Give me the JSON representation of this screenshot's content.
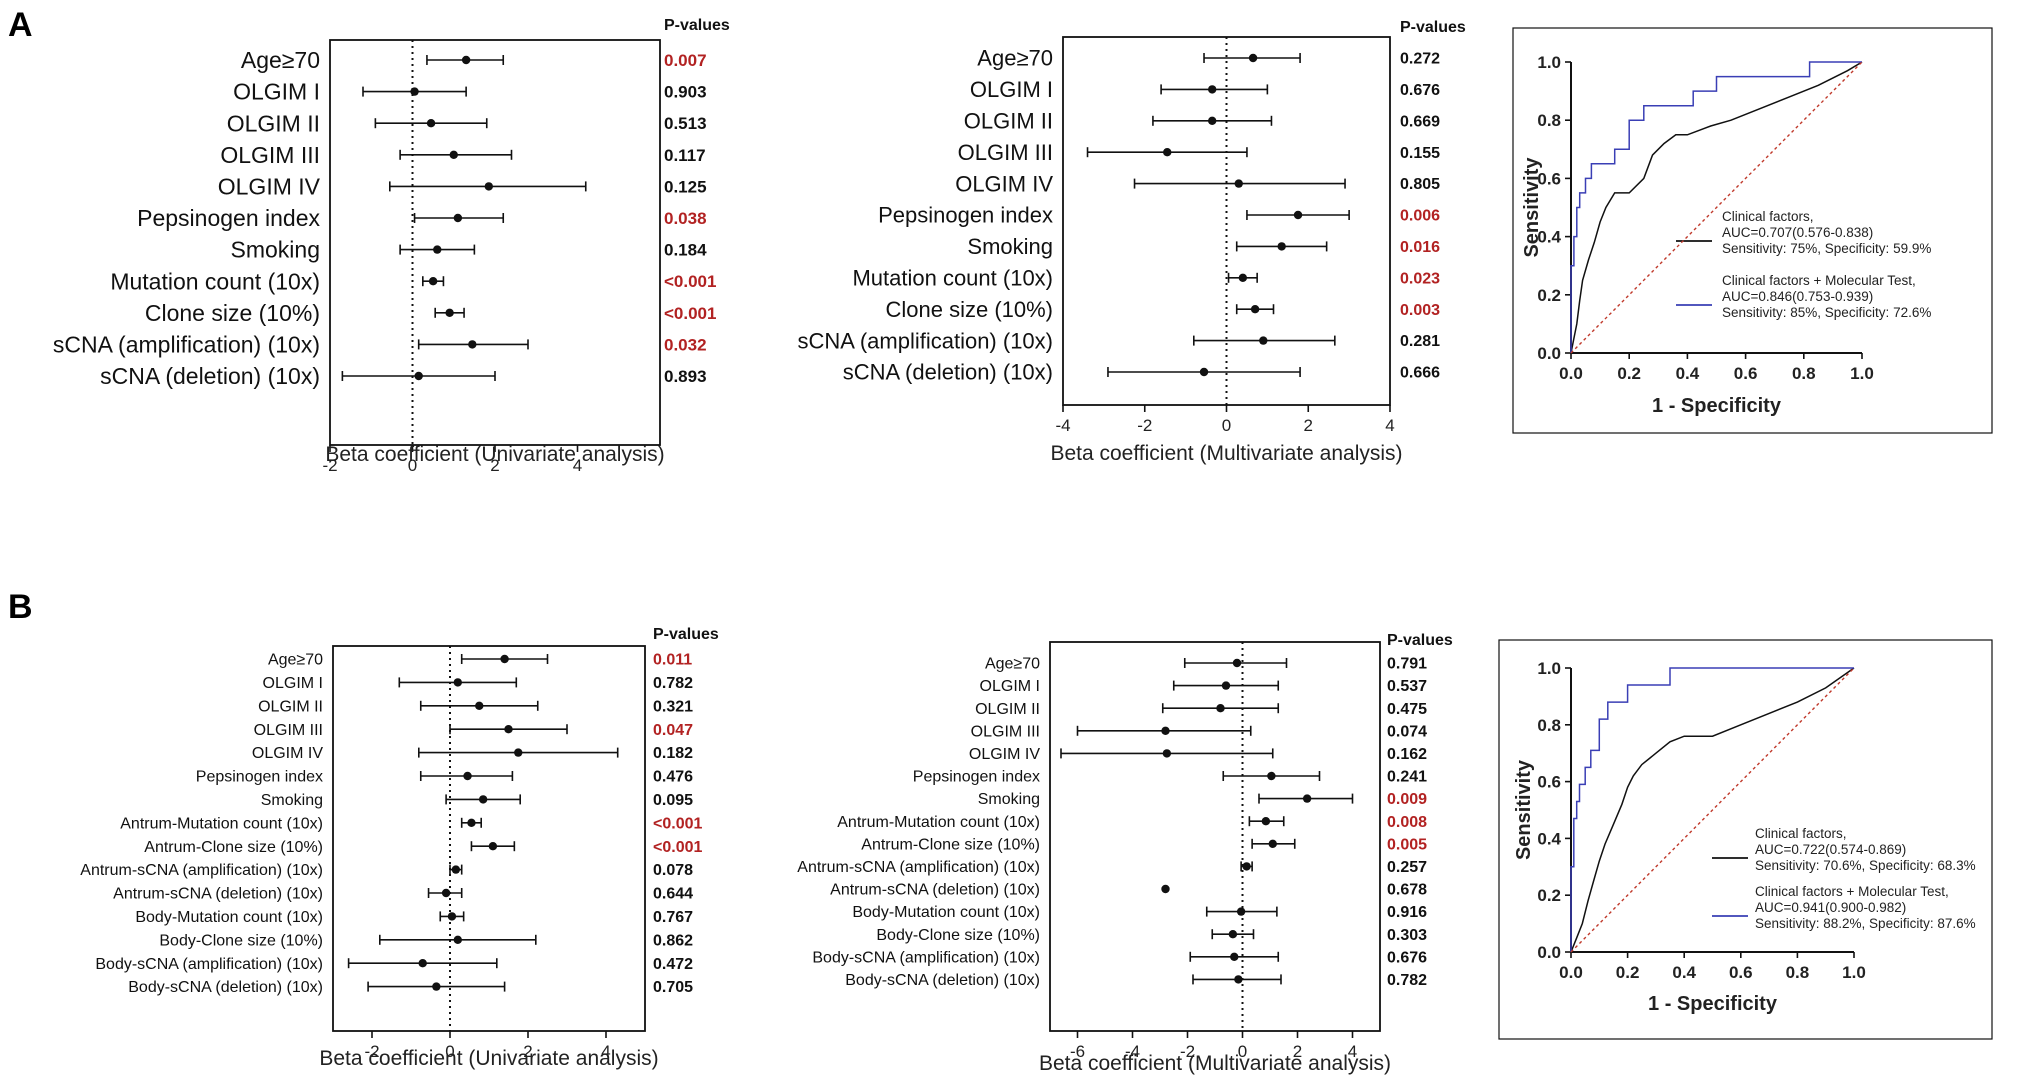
{
  "figure": {
    "panel_a_label": "A",
    "panel_b_label": "B"
  },
  "colors": {
    "significant": "#b22222",
    "normal": "#111111",
    "clinical": "#111111",
    "molecular": "#3a3fb5",
    "diagonal": "#c0392b"
  },
  "chart_data": [
    {
      "id": "A1",
      "type": "forest",
      "pvalue_header": "P-values",
      "xlabel": "Beta coefficient (Univariate analysis)",
      "xlim": [
        -2,
        6
      ],
      "xticks": [
        -2,
        0,
        2,
        4
      ],
      "rows": [
        {
          "label": "Age≥70",
          "est": 1.3,
          "lo": 0.35,
          "hi": 2.2,
          "p": "0.007",
          "sig": true
        },
        {
          "label": "OLGIM I",
          "est": 0.05,
          "lo": -1.2,
          "hi": 1.3,
          "p": "0.903",
          "sig": false
        },
        {
          "label": "OLGIM II",
          "est": 0.45,
          "lo": -0.9,
          "hi": 1.8,
          "p": "0.513",
          "sig": false
        },
        {
          "label": "OLGIM III",
          "est": 1.0,
          "lo": -0.3,
          "hi": 2.4,
          "p": "0.117",
          "sig": false
        },
        {
          "label": "OLGIM IV",
          "est": 1.85,
          "lo": -0.55,
          "hi": 4.2,
          "p": "0.125",
          "sig": false
        },
        {
          "label": "Pepsinogen index",
          "est": 1.1,
          "lo": 0.05,
          "hi": 2.2,
          "p": "0.038",
          "sig": true
        },
        {
          "label": "Smoking",
          "est": 0.6,
          "lo": -0.3,
          "hi": 1.5,
          "p": "0.184",
          "sig": false
        },
        {
          "label": "Mutation count (10x)",
          "est": 0.5,
          "lo": 0.25,
          "hi": 0.75,
          "p": "<0.001",
          "sig": true
        },
        {
          "label": "Clone size (10%)",
          "est": 0.9,
          "lo": 0.55,
          "hi": 1.25,
          "p": "<0.001",
          "sig": true
        },
        {
          "label": "sCNA (amplification) (10x)",
          "est": 1.45,
          "lo": 0.15,
          "hi": 2.8,
          "p": "0.032",
          "sig": true
        },
        {
          "label": "sCNA (deletion) (10x)",
          "est": 0.15,
          "lo": -1.7,
          "hi": 2.0,
          "p": "0.893",
          "sig": false
        }
      ]
    },
    {
      "id": "A2",
      "type": "forest",
      "pvalue_header": "P-values",
      "xlabel": "Beta coefficient (Multivariate analysis)",
      "xlim": [
        -4,
        4
      ],
      "xticks": [
        -4,
        -2,
        0,
        2,
        4
      ],
      "rows": [
        {
          "label": "Age≥70",
          "est": 0.65,
          "lo": -0.55,
          "hi": 1.8,
          "p": "0.272",
          "sig": false
        },
        {
          "label": "OLGIM I",
          "est": -0.35,
          "lo": -1.6,
          "hi": 1.0,
          "p": "0.676",
          "sig": false
        },
        {
          "label": "OLGIM II",
          "est": -0.35,
          "lo": -1.8,
          "hi": 1.1,
          "p": "0.669",
          "sig": false
        },
        {
          "label": "OLGIM III",
          "est": -1.45,
          "lo": -3.4,
          "hi": 0.5,
          "p": "0.155",
          "sig": false
        },
        {
          "label": "OLGIM IV",
          "est": 0.3,
          "lo": -2.25,
          "hi": 2.9,
          "p": "0.805",
          "sig": false
        },
        {
          "label": "Pepsinogen index",
          "est": 1.75,
          "lo": 0.5,
          "hi": 3.0,
          "p": "0.006",
          "sig": true
        },
        {
          "label": "Smoking",
          "est": 1.35,
          "lo": 0.25,
          "hi": 2.45,
          "p": "0.016",
          "sig": true
        },
        {
          "label": "Mutation count (10x)",
          "est": 0.4,
          "lo": 0.05,
          "hi": 0.75,
          "p": "0.023",
          "sig": true
        },
        {
          "label": "Clone size (10%)",
          "est": 0.7,
          "lo": 0.25,
          "hi": 1.15,
          "p": "0.003",
          "sig": true
        },
        {
          "label": "sCNA (amplification) (10x)",
          "est": 0.9,
          "lo": -0.8,
          "hi": 2.65,
          "p": "0.281",
          "sig": false
        },
        {
          "label": "sCNA (deletion) (10x)",
          "est": -0.55,
          "lo": -2.9,
          "hi": 1.8,
          "p": "0.666",
          "sig": false
        }
      ]
    },
    {
      "id": "A3",
      "type": "line",
      "title": "",
      "xlabel": "1 - Specificity",
      "ylabel": "Sensitivity",
      "xlim": [
        0,
        1
      ],
      "ylim": [
        0,
        1
      ],
      "xticks": [
        "0.0",
        "0.2",
        "0.4",
        "0.6",
        "0.8",
        "1.0"
      ],
      "yticks": [
        "0.0",
        "0.2",
        "0.4",
        "0.6",
        "0.8",
        "1.0"
      ],
      "series": [
        {
          "name": "Clinical factors",
          "legend": [
            "Clinical factors,",
            "AUC=0.707(0.576-0.838)",
            "Sensitivity: 75%, Specificity: 59.9%"
          ],
          "color_key": "clinical",
          "x": [
            0,
            0.01,
            0.02,
            0.03,
            0.04,
            0.06,
            0.08,
            0.1,
            0.12,
            0.15,
            0.18,
            0.2,
            0.25,
            0.28,
            0.32,
            0.36,
            0.4,
            0.48,
            0.55,
            0.65,
            0.75,
            0.85,
            0.95,
            1.0
          ],
          "y": [
            0,
            0.05,
            0.1,
            0.18,
            0.25,
            0.32,
            0.38,
            0.45,
            0.5,
            0.55,
            0.55,
            0.55,
            0.6,
            0.68,
            0.72,
            0.75,
            0.75,
            0.78,
            0.8,
            0.84,
            0.88,
            0.92,
            0.97,
            1.0
          ]
        },
        {
          "name": "Clinical factors + Molecular Test",
          "legend": [
            "Clinical factors + Molecular Test,",
            "AUC=0.846(0.753-0.939)",
            "Sensitivity: 85%, Specificity: 72.6%"
          ],
          "color_key": "molecular",
          "x": [
            0,
            0,
            0.01,
            0.01,
            0.02,
            0.02,
            0.03,
            0.03,
            0.05,
            0.05,
            0.07,
            0.07,
            0.09,
            0.09,
            0.15,
            0.15,
            0.2,
            0.2,
            0.25,
            0.25,
            0.35,
            0.35,
            0.42,
            0.42,
            0.5,
            0.5,
            0.6,
            0.6,
            0.82,
            0.82,
            1.0
          ],
          "y": [
            0,
            0.3,
            0.3,
            0.4,
            0.4,
            0.5,
            0.5,
            0.55,
            0.55,
            0.6,
            0.6,
            0.65,
            0.65,
            0.65,
            0.65,
            0.7,
            0.7,
            0.8,
            0.8,
            0.85,
            0.85,
            0.85,
            0.85,
            0.9,
            0.9,
            0.95,
            0.95,
            0.95,
            0.95,
            1.0,
            1.0
          ]
        },
        {
          "name": "Reference",
          "color_key": "diagonal",
          "dashed": true,
          "x": [
            0,
            1
          ],
          "y": [
            0,
            1
          ]
        }
      ]
    },
    {
      "id": "B1",
      "type": "forest",
      "pvalue_header": "P-values",
      "xlabel": "Beta coefficient (Univariate analysis)",
      "xlim": [
        -3,
        5
      ],
      "xticks": [
        -2,
        0,
        2,
        4
      ],
      "rows": [
        {
          "label": "Age≥70",
          "est": 1.4,
          "lo": 0.3,
          "hi": 2.5,
          "p": "0.011",
          "sig": true
        },
        {
          "label": "OLGIM I",
          "est": 0.2,
          "lo": -1.3,
          "hi": 1.7,
          "p": "0.782",
          "sig": false
        },
        {
          "label": "OLGIM II",
          "est": 0.75,
          "lo": -0.75,
          "hi": 2.25,
          "p": "0.321",
          "sig": false
        },
        {
          "label": "OLGIM III",
          "est": 1.5,
          "lo": 0.0,
          "hi": 3.0,
          "p": "0.047",
          "sig": true
        },
        {
          "label": "OLGIM IV",
          "est": 1.75,
          "lo": -0.8,
          "hi": 4.3,
          "p": "0.182",
          "sig": false
        },
        {
          "label": "Pepsinogen index",
          "est": 0.45,
          "lo": -0.75,
          "hi": 1.6,
          "p": "0.476",
          "sig": false
        },
        {
          "label": "Smoking",
          "est": 0.85,
          "lo": -0.1,
          "hi": 1.8,
          "p": "0.095",
          "sig": false
        },
        {
          "label": "Antrum-Mutation count (10x)",
          "est": 0.55,
          "lo": 0.3,
          "hi": 0.8,
          "p": "<0.001",
          "sig": true
        },
        {
          "label": "Antrum-Clone size (10%)",
          "est": 1.1,
          "lo": 0.55,
          "hi": 1.65,
          "p": "<0.001",
          "sig": true
        },
        {
          "label": "Antrum-sCNA (amplification) (10x)",
          "est": 0.15,
          "lo": 0.0,
          "hi": 0.3,
          "p": "0.078",
          "sig": false
        },
        {
          "label": "Antrum-sCNA (deletion) (10x)",
          "est": -0.1,
          "lo": -0.55,
          "hi": 0.3,
          "p": "0.644",
          "sig": false
        },
        {
          "label": "Body-Mutation count (10x)",
          "est": 0.05,
          "lo": -0.25,
          "hi": 0.35,
          "p": "0.767",
          "sig": false
        },
        {
          "label": "Body-Clone size (10%)",
          "est": 0.2,
          "lo": -1.8,
          "hi": 2.2,
          "p": "0.862",
          "sig": false
        },
        {
          "label": "Body-sCNA (amplification) (10x)",
          "est": -0.7,
          "lo": -2.6,
          "hi": 1.2,
          "p": "0.472",
          "sig": false
        },
        {
          "label": "Body-sCNA (deletion) (10x)",
          "est": -0.35,
          "lo": -2.1,
          "hi": 1.4,
          "p": "0.705",
          "sig": false
        }
      ]
    },
    {
      "id": "B2",
      "type": "forest",
      "pvalue_header": "P-values",
      "xlabel": "Beta coefficient (Multivariate analysis)",
      "xlim": [
        -7,
        5
      ],
      "xticks": [
        -6,
        -4,
        -2,
        0,
        2,
        4
      ],
      "rows": [
        {
          "label": "Age≥70",
          "est": -0.2,
          "lo": -2.1,
          "hi": 1.6,
          "p": "0.791",
          "sig": false
        },
        {
          "label": "OLGIM I",
          "est": -0.6,
          "lo": -2.5,
          "hi": 1.3,
          "p": "0.537",
          "sig": false
        },
        {
          "label": "OLGIM II",
          "est": -0.8,
          "lo": -2.9,
          "hi": 1.3,
          "p": "0.475",
          "sig": false
        },
        {
          "label": "OLGIM III",
          "est": -2.8,
          "lo": -6.0,
          "hi": 0.3,
          "p": "0.074",
          "sig": false
        },
        {
          "label": "OLGIM IV",
          "est": -2.75,
          "lo": -6.6,
          "hi": 1.1,
          "p": "0.162",
          "sig": false
        },
        {
          "label": "Pepsinogen index",
          "est": 1.05,
          "lo": -0.7,
          "hi": 2.8,
          "p": "0.241",
          "sig": false
        },
        {
          "label": "Smoking",
          "est": 2.35,
          "lo": 0.6,
          "hi": 4.0,
          "p": "0.009",
          "sig": true
        },
        {
          "label": "Antrum-Mutation count (10x)",
          "est": 0.85,
          "lo": 0.25,
          "hi": 1.5,
          "p": "0.008",
          "sig": true
        },
        {
          "label": "Antrum-Clone size (10%)",
          "est": 1.1,
          "lo": 0.35,
          "hi": 1.9,
          "p": "0.005",
          "sig": true
        },
        {
          "label": "Antrum-sCNA (amplification) (10x)",
          "est": 0.15,
          "lo": -0.05,
          "hi": 0.35,
          "p": "0.257",
          "sig": false
        },
        {
          "label": "Antrum-sCNA (deletion) (10x)",
          "est": -2.8,
          "lo": null,
          "hi": null,
          "p": "0.678",
          "sig": false
        },
        {
          "label": "Body-Mutation count (10x)",
          "est": -0.05,
          "lo": -1.3,
          "hi": 1.25,
          "p": "0.916",
          "sig": false
        },
        {
          "label": "Body-Clone size (10%)",
          "est": -0.35,
          "lo": -1.1,
          "hi": 0.4,
          "p": "0.303",
          "sig": false
        },
        {
          "label": "Body-sCNA (amplification) (10x)",
          "est": -0.3,
          "lo": -1.9,
          "hi": 1.3,
          "p": "0.676",
          "sig": false
        },
        {
          "label": "Body-sCNA (deletion) (10x)",
          "est": -0.15,
          "lo": -1.8,
          "hi": 1.4,
          "p": "0.782",
          "sig": false
        }
      ]
    },
    {
      "id": "B3",
      "type": "line",
      "title": "",
      "xlabel": "1 - Specificity",
      "ylabel": "Sensitivity",
      "xlim": [
        0,
        1
      ],
      "ylim": [
        0,
        1
      ],
      "xticks": [
        "0.0",
        "0.2",
        "0.4",
        "0.6",
        "0.8",
        "1.0"
      ],
      "yticks": [
        "0.0",
        "0.2",
        "0.4",
        "0.6",
        "0.8",
        "1.0"
      ],
      "series": [
        {
          "name": "Clinical factors",
          "legend": [
            "Clinical factors,",
            "AUC=0.722(0.574-0.869)",
            "Sensitivity: 70.6%, Specificity: 68.3%"
          ],
          "color_key": "clinical",
          "x": [
            0,
            0.02,
            0.04,
            0.06,
            0.08,
            0.1,
            0.12,
            0.15,
            0.18,
            0.2,
            0.22,
            0.25,
            0.3,
            0.35,
            0.4,
            0.5,
            0.6,
            0.7,
            0.8,
            0.9,
            1.0
          ],
          "y": [
            0,
            0.05,
            0.1,
            0.18,
            0.25,
            0.32,
            0.38,
            0.45,
            0.52,
            0.58,
            0.62,
            0.66,
            0.7,
            0.74,
            0.76,
            0.76,
            0.8,
            0.84,
            0.88,
            0.93,
            1.0
          ]
        },
        {
          "name": "Clinical factors + Molecular Test",
          "legend": [
            "Clinical factors + Molecular Test,",
            "AUC=0.941(0.900-0.982)",
            "Sensitivity: 88.2%, Specificity: 87.6%"
          ],
          "color_key": "molecular",
          "x": [
            0,
            0,
            0.01,
            0.01,
            0.02,
            0.02,
            0.03,
            0.03,
            0.05,
            0.05,
            0.07,
            0.07,
            0.1,
            0.1,
            0.13,
            0.13,
            0.2,
            0.2,
            0.25,
            0.25,
            0.35,
            0.35,
            1.0
          ],
          "y": [
            0,
            0.3,
            0.3,
            0.47,
            0.47,
            0.53,
            0.53,
            0.59,
            0.59,
            0.65,
            0.65,
            0.71,
            0.71,
            0.82,
            0.82,
            0.88,
            0.88,
            0.94,
            0.94,
            0.94,
            0.94,
            1.0,
            1.0
          ]
        },
        {
          "name": "Reference",
          "color_key": "diagonal",
          "dashed": true,
          "x": [
            0,
            1
          ],
          "y": [
            0,
            1
          ]
        }
      ]
    }
  ]
}
